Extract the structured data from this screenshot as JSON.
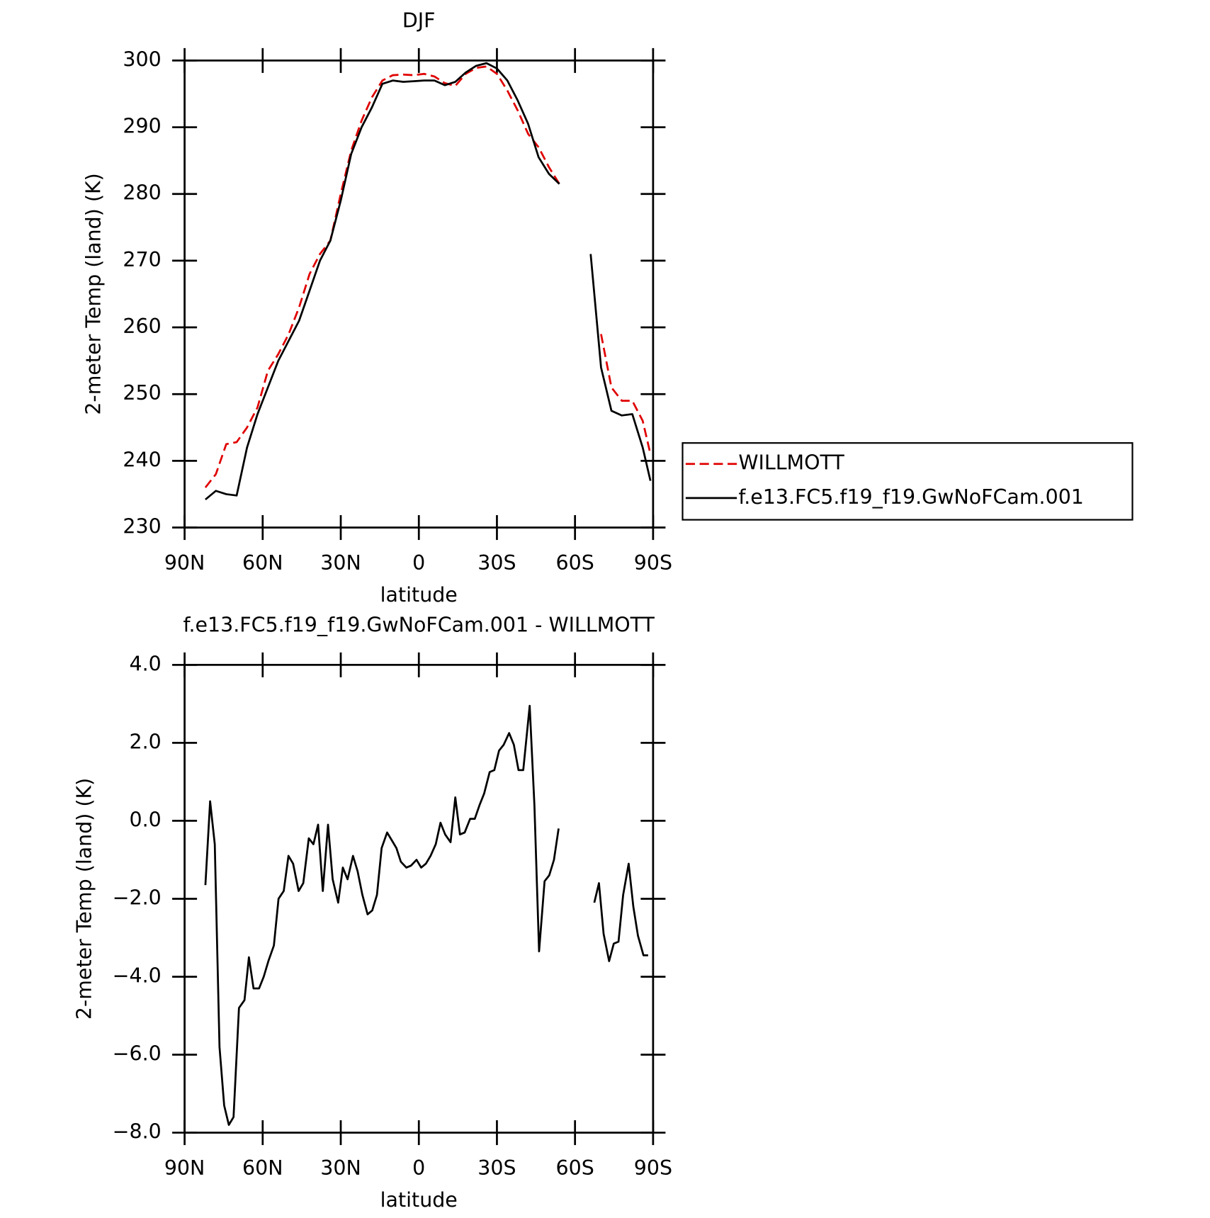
{
  "chart_data": [
    {
      "type": "line",
      "title": "DJF",
      "xlabel": "latitude",
      "ylabel": "2-meter Temp (land) (K)",
      "x": [
        82,
        78,
        74,
        70,
        66,
        62,
        58,
        54,
        50,
        46,
        42,
        38,
        34,
        30,
        26,
        22,
        18,
        14,
        10,
        6,
        2,
        -2,
        -6,
        -10,
        -14,
        -18,
        -22,
        -26,
        -30,
        -34,
        -38,
        -42,
        -46,
        -50,
        -54,
        -58,
        -62,
        -66,
        -70,
        -74,
        -78,
        -82,
        -86,
        -89
      ],
      "series": [
        {
          "name": "WILLMOTT",
          "color": "#e00000",
          "linestyle": "dashed",
          "values": [
            236,
            238,
            242.5,
            242.8,
            245,
            248,
            253.5,
            256,
            259,
            263,
            268,
            271,
            273,
            280,
            286.5,
            291,
            294.5,
            297,
            297.8,
            297.9,
            297.8,
            298,
            297.6,
            296.6,
            296.2,
            298,
            298.9,
            299.1,
            298,
            295.5,
            292.5,
            289,
            287,
            284,
            281.5,
            null,
            null,
            null,
            259,
            251,
            249,
            249,
            246,
            241
          ]
        },
        {
          "name": "f.e13.FC5.f19_f19.GwNoFCam.001",
          "color": "#000000",
          "linestyle": "solid",
          "values": [
            234.2,
            235.5,
            235,
            234.8,
            242,
            247,
            251,
            255,
            258,
            261,
            265.5,
            270,
            273,
            279,
            286,
            290,
            293,
            296.5,
            297,
            296.8,
            296.9,
            297,
            297,
            296.3,
            296.8,
            298.2,
            299.2,
            299.6,
            298.8,
            297,
            294,
            290.5,
            285.5,
            283,
            281.5,
            null,
            null,
            271,
            254,
            247.5,
            246.8,
            247,
            242,
            237
          ]
        }
      ],
      "xlim": [
        90,
        -90
      ],
      "xticks": [
        {
          "value": 90,
          "label": "90N"
        },
        {
          "value": 60,
          "label": "60N"
        },
        {
          "value": 30,
          "label": "30N"
        },
        0,
        {
          "value": -30,
          "label": "30S"
        },
        {
          "value": -60,
          "label": "60S"
        },
        {
          "value": -90,
          "label": "90S"
        }
      ],
      "ylim": [
        230,
        300
      ],
      "yticks": [
        230,
        240,
        250,
        260,
        270,
        280,
        290,
        300
      ],
      "legend": "right"
    },
    {
      "type": "line",
      "title": "f.e13.FC5.f19_f19.GwNoFCam.001 - WILLMOTT",
      "xlabel": "latitude",
      "ylabel": "2-meter Temp (land) (K)",
      "x": [
        82,
        80.2,
        78.4,
        76.6,
        74.8,
        73,
        71.2,
        69.1,
        67,
        65.3,
        63.5,
        61.4,
        59.6,
        57.8,
        55.7,
        53.9,
        51.9,
        50.1,
        48.3,
        46.2,
        44.4,
        42.3,
        40.5,
        38.7,
        36.9,
        34.9,
        33.1,
        31,
        29.2,
        27.4,
        25.3,
        23.5,
        21.7,
        19.7,
        17.9,
        16.1,
        14.3,
        12.2,
        10.4,
        8.6,
        6.9,
        4.8,
        3,
        0.9,
        -0.9,
        -2.7,
        -4.5,
        -6.5,
        -8.3,
        -10.1,
        -12.2,
        -14,
        -15.8,
        -17.6,
        -19.7,
        -21.5,
        -23.3,
        -25.1,
        -27.2,
        -29,
        -30.8,
        -32.6,
        -34.7,
        -36.5,
        -38.3,
        -40.1,
        -42.6,
        -44.4,
        -46.2,
        -48.3,
        -50.1,
        -51.9,
        -53.7,
        -60,
        -67.4,
        -69.2,
        -71,
        -73.1,
        -74.9,
        -76.7,
        -78.5,
        -80.6,
        -82.4,
        -84.2,
        -86.3,
        -88.1
      ],
      "values": [
        -1.65,
        0.5,
        -0.6,
        -5.8,
        -7.3,
        -7.8,
        -7.6,
        -4.8,
        -4.6,
        -3.5,
        -4.3,
        -4.3,
        -4.0,
        -3.6,
        -3.2,
        -2.0,
        -1.8,
        -0.9,
        -1.1,
        -1.8,
        -1.6,
        -0.45,
        -0.6,
        -0.1,
        -1.8,
        -0.1,
        -1.5,
        -2.1,
        -1.2,
        -1.5,
        -0.9,
        -1.3,
        -1.9,
        -2.4,
        -2.3,
        -1.9,
        -0.7,
        -0.3,
        -0.5,
        -0.7,
        -1.05,
        -1.2,
        -1.15,
        -1.0,
        -1.2,
        -1.1,
        -0.9,
        -0.6,
        -0.05,
        -0.35,
        -0.55,
        0.6,
        -0.35,
        -0.3,
        0.05,
        0.05,
        0.4,
        0.7,
        1.25,
        1.3,
        1.8,
        1.95,
        2.25,
        1.95,
        1.3,
        1.3,
        2.95,
        0.4,
        -3.35,
        -1.55,
        -1.4,
        -1.0,
        -0.2,
        null,
        -2.1,
        -1.6,
        -2.9,
        -3.6,
        -3.15,
        -3.1,
        -1.9,
        -1.1,
        -2.2,
        -2.95,
        -3.45,
        -3.45
      ],
      "color": "#000000",
      "xlim": [
        90,
        -90
      ],
      "xticks": [
        {
          "value": 90,
          "label": "90N"
        },
        {
          "value": 60,
          "label": "60N"
        },
        {
          "value": 30,
          "label": "30N"
        },
        0,
        {
          "value": -30,
          "label": "30S"
        },
        {
          "value": -60,
          "label": "60S"
        },
        {
          "value": -90,
          "label": "90S"
        }
      ],
      "ylim": [
        -8,
        4
      ],
      "yticks": [
        {
          "value": -8,
          "label": "−8.0"
        },
        {
          "value": -6,
          "label": "−6.0"
        },
        {
          "value": -4,
          "label": "−4.0"
        },
        {
          "value": -2,
          "label": "−2.0"
        },
        {
          "value": 0,
          "label": "0.0"
        },
        {
          "value": 2,
          "label": "2.0"
        },
        {
          "value": 4,
          "label": "4.0"
        }
      ]
    }
  ]
}
